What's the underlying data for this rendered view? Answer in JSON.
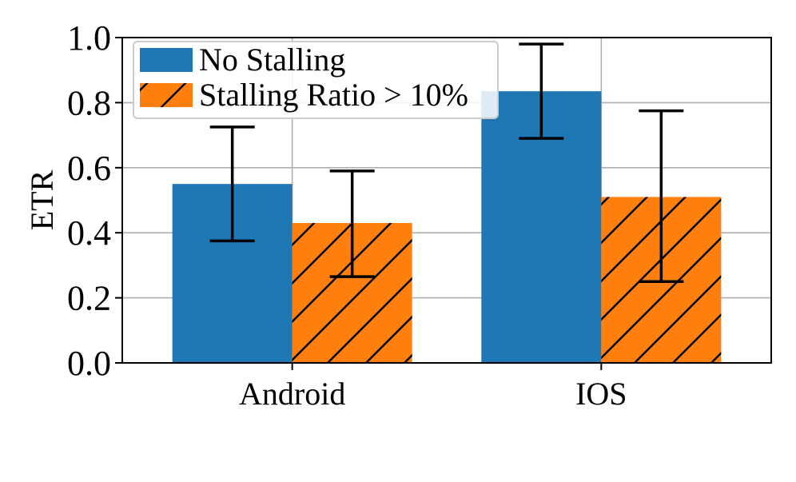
{
  "chart_data": {
    "type": "bar",
    "categories": [
      "Android",
      "IOS"
    ],
    "series": [
      {
        "name": "No Stalling",
        "values": [
          0.55,
          0.835
        ],
        "error_low": [
          0.375,
          0.69
        ],
        "error_high": [
          0.725,
          0.98
        ],
        "color": "#1f77b4",
        "hatch": false
      },
      {
        "name": "Stalling Ratio > 10%",
        "values": [
          0.43,
          0.51
        ],
        "error_low": [
          0.265,
          0.25
        ],
        "error_high": [
          0.59,
          0.775
        ],
        "color": "#ff7f0e",
        "hatch": true
      }
    ],
    "title": "",
    "xlabel": "",
    "ylabel": "ETR",
    "ylim": [
      0.0,
      1.0
    ],
    "yticks": [
      "0.0",
      "0.2",
      "0.4",
      "0.6",
      "0.8",
      "1.0"
    ],
    "grid": true,
    "legend_position": "top-left"
  }
}
